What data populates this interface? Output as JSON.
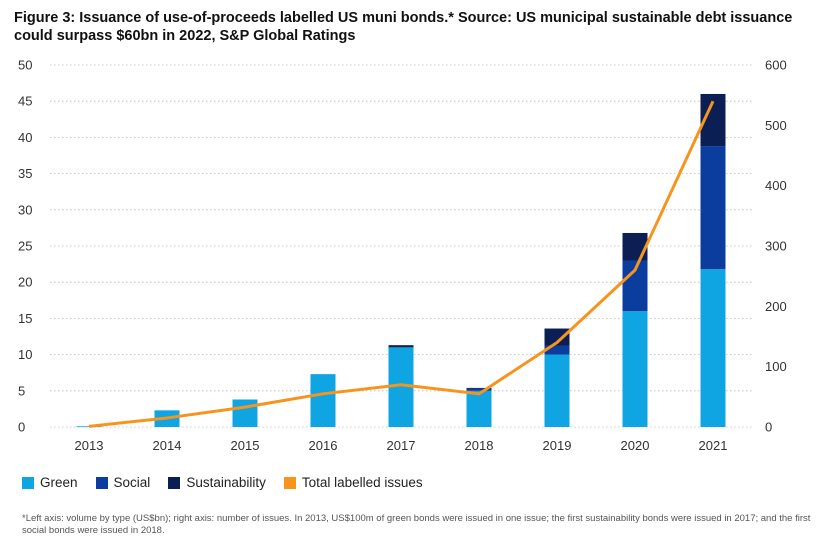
{
  "title": "Figure 3: Issuance of use-of-proceeds labelled US muni bonds.* Source: US municipal sustainable debt issuance could surpass $60bn in 2022, S&P Global Ratings",
  "footnote": "*Left axis: volume by type (US$bn); right axis: number of issues. In 2013, US$100m of green bonds were issued in one issue; the first sustainability bonds were issued in 2017; and the first social bonds were issued in 2018.",
  "colors": {
    "green": "#0ea5e2",
    "social": "#0b3d9e",
    "sustainability": "#0b1f55",
    "total": "#f7941d"
  },
  "chart_data": {
    "type": "bar",
    "stacked": true,
    "categories": [
      "2013",
      "2014",
      "2015",
      "2016",
      "2017",
      "2018",
      "2019",
      "2020",
      "2021"
    ],
    "series": [
      {
        "name": "Green",
        "axis": "left",
        "values": [
          0.1,
          2.3,
          3.8,
          7.3,
          11.0,
          5.0,
          10.0,
          16.0,
          21.8
        ]
      },
      {
        "name": "Social",
        "axis": "left",
        "values": [
          0,
          0,
          0,
          0,
          0,
          0.3,
          1.2,
          7.0,
          17.0
        ]
      },
      {
        "name": "Sustainability",
        "axis": "left",
        "values": [
          0,
          0,
          0,
          0,
          0.3,
          0.1,
          2.4,
          3.8,
          7.2
        ]
      },
      {
        "name": "Total labelled issues",
        "type": "line",
        "axis": "right",
        "values": [
          1,
          15,
          33,
          55,
          70,
          55,
          140,
          260,
          540
        ]
      }
    ],
    "y_left": {
      "ylim": [
        0,
        50
      ],
      "ticks": [
        0,
        5,
        10,
        15,
        20,
        25,
        30,
        35,
        40,
        45,
        50
      ]
    },
    "y_right": {
      "ylim": [
        0,
        600
      ],
      "ticks": [
        0,
        100,
        200,
        300,
        400,
        500,
        600
      ]
    },
    "grid": true,
    "legend_position": "bottom-left"
  }
}
